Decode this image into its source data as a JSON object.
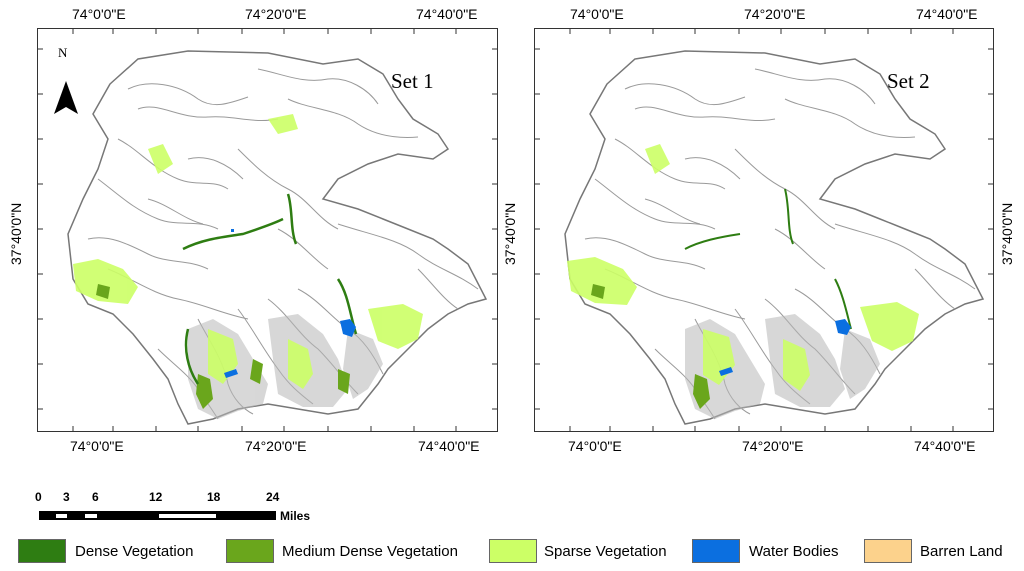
{
  "map": {
    "panels": [
      {
        "set_label": "Set 1"
      },
      {
        "set_label": "Set 2"
      }
    ],
    "top_lon_labels": [
      "74°0'0\"E",
      "74°20'0\"E",
      "74°40'0\"E"
    ],
    "bottom_lon_labels": [
      "74°0'0\"E",
      "74°20'0\"E",
      "74°40'0\"E"
    ],
    "lat_label": "37°40'0\"N",
    "north_arrow": "N"
  },
  "scale_bar": {
    "ticks": [
      "0",
      "3",
      "6",
      "12",
      "18",
      "24"
    ],
    "unit": "Miles"
  },
  "legend": [
    {
      "label": "Dense Vegetation",
      "color": "#2e7d12"
    },
    {
      "label": "Medium Dense Vegetation",
      "color": "#6aa61c"
    },
    {
      "label": "Sparse Vegetation",
      "color": "#ccff66"
    },
    {
      "label": "Water Bodies",
      "color": "#0b6fe0"
    },
    {
      "label": "Barren Land",
      "color": "#fcd28c"
    }
  ]
}
